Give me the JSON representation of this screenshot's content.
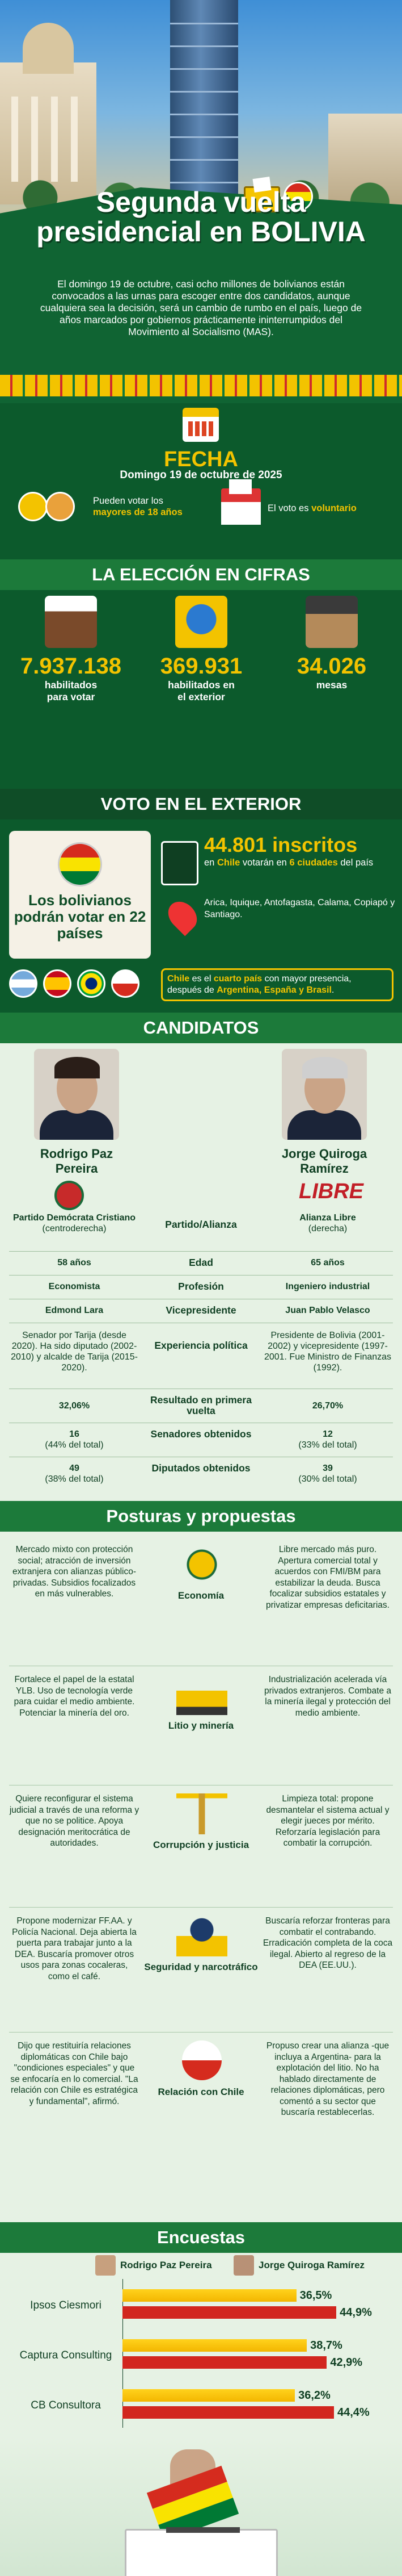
{
  "hero": {
    "title_line1": "Segunda vuelta",
    "title_line2": "presidencial en BOLIVIA",
    "intro": "El domingo 19 de octubre, casi ocho millones de bolivianos están convocados a las urnas para escoger entre dos candidatos, aunque cualquiera sea la decisión, será un cambio de rumbo en el país, luego de años marcados por gobiernos prácticamente ininterrumpidos del Movimiento al Socialismo (MAS)."
  },
  "fecha": {
    "title": "FECHA",
    "date": "Domingo 19 de octubre de 2025",
    "pueden_pre": "Pueden votar los",
    "pueden_em": "mayores de 18 años",
    "voto_pre": "El voto es",
    "voto_em": "voluntario"
  },
  "cifras": {
    "title": "LA ELECCIÓN EN CIFRAS",
    "items": [
      {
        "num": "7.937.138",
        "lbl1": "habilitados",
        "lbl2": "para votar"
      },
      {
        "num": "369.931",
        "lbl1": "habilitados en",
        "lbl2": "el exterior"
      },
      {
        "num": "34.026",
        "lbl1": "mesas",
        "lbl2": ""
      }
    ]
  },
  "exterior": {
    "title": "VOTO EN EL EXTERIOR",
    "card": "Los bolivianos podrán votar en 22 países",
    "inscritos": "44.801 inscritos",
    "ins_pre": "en",
    "ins_country": "Chile",
    "ins_mid": "votarán en",
    "ins_em": "6 ciudades",
    "ins_post": "del país",
    "cities": "Arica, Iquique, Antofagasta, Calama, Copiapó y Santiago.",
    "pais_1": "Chile",
    "pais_2": "es el",
    "pais_3": "cuarto país",
    "pais_4": "con mayor presencia, después de",
    "pais_5": "Argentina, España y Brasil",
    "pais_6": "."
  },
  "candidatos": {
    "title": "CANDIDATOS",
    "left_name": "Rodrigo Paz Pereira",
    "right_name": "Jorge Quiroga Ramírez",
    "libre_logo": "LIBRE",
    "rows": [
      {
        "l": "Partido Demócrata Cristiano",
        "l2": "(centroderecha)",
        "m": "Partido/Alianza",
        "r": "Alianza Libre",
        "r2": "(derecha)"
      },
      {
        "l": "58 años",
        "m": "Edad",
        "r": "65 años"
      },
      {
        "l": "Economista",
        "m": "Profesión",
        "r": "Ingeniero industrial"
      },
      {
        "l": "Edmond Lara",
        "m": "Vicepresidente",
        "r": "Juan Pablo Velasco"
      },
      {
        "l": "Senador por Tarija (desde 2020). Ha sido diputado (2002-2010) y alcalde de Tarija (2015-2020).",
        "m": "Experiencia política",
        "r": "Presidente de Bolivia (2001-2002) y vicepresidente (1997-2001. Fue Ministro de Finanzas (1992)."
      },
      {
        "l": "32,06%",
        "m": "Resultado en primera vuelta",
        "r": "26,70%"
      },
      {
        "l": "16",
        "l2": "(44% del total)",
        "m": "Senadores obtenidos",
        "r": "12",
        "r2": "(33% del total)"
      },
      {
        "l": "49",
        "l2": "(38% del total)",
        "m": "Diputados obtenidos",
        "r": "39",
        "r2": "(30% del total)"
      }
    ]
  },
  "posturas": {
    "title": "Posturas y propuestas",
    "topics": [
      {
        "name": "Economía",
        "l": "Mercado mixto con protección social; atracción de inversión extranjera con alianzas público-privadas. Subsidios focalizados en más vulnerables.",
        "r": "Libre mercado más puro. Apertura comercial total y acuerdos con FMI/BM para estabilizar la deuda. Busca focalizar subsidios estatales y privatizar empresas deficitarias."
      },
      {
        "name": "Litio y minería",
        "l": "Fortalece el papel de la estatal YLB. Uso de tecnología verde para cuidar el medio ambiente. Potenciar la minería del oro.",
        "r": "Industrialización acelerada vía privados extranjeros. Combate a la minería ilegal y protección del medio ambiente."
      },
      {
        "name": "Corrupción y justicia",
        "l": "Quiere reconfigurar el sistema judicial a través de una reforma y que no se politice. Apoya designación meritocrática de autoridades.",
        "r": "Limpieza total: propone desmantelar el sistema actual y elegir jueces por mérito. Reforzaría legislación para combatir la corrupción."
      },
      {
        "name": "Seguridad y narcotráfico",
        "l": "Propone modernizar FF.AA. y Policía Nacional. Deja abierta la puerta para trabajar junto a la DEA. Buscaría promover otros usos para zonas cocaleras, como el café.",
        "r": "Buscaría reforzar fronteras para combatir el contrabando. Erradicación completa de la coca ilegal. Abierto al regreso de la DEA (EE.UU.)."
      },
      {
        "name": "Relación con Chile",
        "l": "Dijo que restituiría relaciones diplomáticas con Chile bajo \"condiciones especiales\" y que se enfocaría en lo comercial. \"La relación con Chile es estratégica y fundamental\", afirmó.",
        "r": "Propuso crear una alianza -que incluya a Argentina- para la explotación del litio. No ha hablado directamente de relaciones diplomáticas, pero comentó a su sector que buscaría restablecerlas."
      }
    ]
  },
  "encuestas": {
    "title": "Encuestas",
    "legend": [
      "Rodrigo Paz Pereira",
      "Jorge Quiroga Ramírez"
    ],
    "colors": {
      "paz": "#f3c300",
      "quiroga": "#d2261f"
    },
    "chart_data": {
      "type": "bar",
      "categories": [
        "Ipsos Ciesmori",
        "Captura Consulting",
        "CB Consultora"
      ],
      "series": [
        {
          "name": "Rodrigo Paz Pereira",
          "values": [
            36.5,
            38.7,
            36.2
          ]
        },
        {
          "name": "Jorge Quiroga Ramírez",
          "values": [
            44.9,
            42.9,
            44.4
          ]
        }
      ],
      "value_labels": [
        [
          "36,5%",
          "44,9%"
        ],
        [
          "38,7%",
          "42,9%"
        ],
        [
          "36,2%",
          "44,4%"
        ]
      ]
    }
  }
}
